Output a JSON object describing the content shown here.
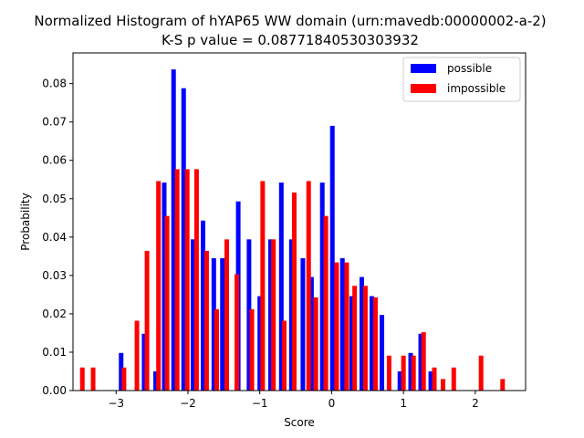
{
  "chart_data": {
    "type": "bar",
    "title": "Normalized Histogram of hYAP65 WW domain (urn:mavedb:00000002-a-2)",
    "subtitle": "K-S p value = 0.08771840530303932",
    "xlabel": "Score",
    "ylabel": "Probability",
    "xlim": [
      -3.6,
      2.7
    ],
    "ylim": [
      0,
      0.088
    ],
    "xticks": [
      -3,
      -2,
      -1,
      0,
      1,
      2
    ],
    "xtick_labels": [
      "−3",
      "−2",
      "−1",
      "0",
      "1",
      "2"
    ],
    "yticks": [
      0.0,
      0.01,
      0.02,
      0.03,
      0.04,
      0.05,
      0.06,
      0.07,
      0.08
    ],
    "ytick_labels": [
      "0.00",
      "0.01",
      "0.02",
      "0.03",
      "0.04",
      "0.05",
      "0.06",
      "0.07",
      "0.08"
    ],
    "legend_position": "top-right",
    "series": [
      {
        "name": "possible",
        "color": "#0000ff",
        "points": [
          [
            -2.93,
            0.0098
          ],
          [
            -2.61,
            0.0148
          ],
          [
            -2.45,
            0.005
          ],
          [
            -2.33,
            0.0542
          ],
          [
            -2.2,
            0.0837
          ],
          [
            -2.06,
            0.0788
          ],
          [
            -1.93,
            0.0394
          ],
          [
            -1.79,
            0.0443
          ],
          [
            -1.64,
            0.0345
          ],
          [
            -1.52,
            0.0345
          ],
          [
            -1.3,
            0.0493
          ],
          [
            -1.15,
            0.0394
          ],
          [
            -1.0,
            0.0246
          ],
          [
            -0.85,
            0.0394
          ],
          [
            -0.7,
            0.0542
          ],
          [
            -0.56,
            0.0394
          ],
          [
            -0.4,
            0.0345
          ],
          [
            -0.28,
            0.0296
          ],
          [
            -0.13,
            0.0542
          ],
          [
            0.01,
            0.069
          ],
          [
            0.15,
            0.0345
          ],
          [
            0.28,
            0.0246
          ],
          [
            0.42,
            0.0296
          ],
          [
            0.56,
            0.0246
          ],
          [
            0.7,
            0.0197
          ],
          [
            0.95,
            0.005
          ],
          [
            1.1,
            0.0098
          ],
          [
            1.24,
            0.0148
          ],
          [
            1.38,
            0.005
          ]
        ]
      },
      {
        "name": "impossible",
        "color": "#ff0000",
        "points": [
          [
            -3.47,
            0.006
          ],
          [
            -3.32,
            0.006
          ],
          [
            -2.89,
            0.006
          ],
          [
            -2.71,
            0.0182
          ],
          [
            -2.57,
            0.0364
          ],
          [
            -2.41,
            0.0546
          ],
          [
            -2.29,
            0.0455
          ],
          [
            -2.15,
            0.0577
          ],
          [
            -2.01,
            0.0577
          ],
          [
            -1.88,
            0.0577
          ],
          [
            -1.74,
            0.0364
          ],
          [
            -1.6,
            0.0212
          ],
          [
            -1.46,
            0.0394
          ],
          [
            -1.32,
            0.0303
          ],
          [
            -1.11,
            0.0212
          ],
          [
            -0.96,
            0.0546
          ],
          [
            -0.81,
            0.0394
          ],
          [
            -0.66,
            0.0182
          ],
          [
            -0.52,
            0.0516
          ],
          [
            -0.32,
            0.0546
          ],
          [
            -0.22,
            0.0243
          ],
          [
            -0.08,
            0.0455
          ],
          [
            0.07,
            0.0334
          ],
          [
            0.21,
            0.0334
          ],
          [
            0.32,
            0.0273
          ],
          [
            0.47,
            0.0273
          ],
          [
            0.61,
            0.0243
          ],
          [
            0.8,
            0.0091
          ],
          [
            1.0,
            0.0091
          ],
          [
            1.14,
            0.0091
          ],
          [
            1.28,
            0.0152
          ],
          [
            1.43,
            0.006
          ],
          [
            1.55,
            0.003
          ],
          [
            1.7,
            0.006
          ],
          [
            2.08,
            0.0091
          ],
          [
            2.38,
            0.003
          ]
        ]
      }
    ]
  }
}
